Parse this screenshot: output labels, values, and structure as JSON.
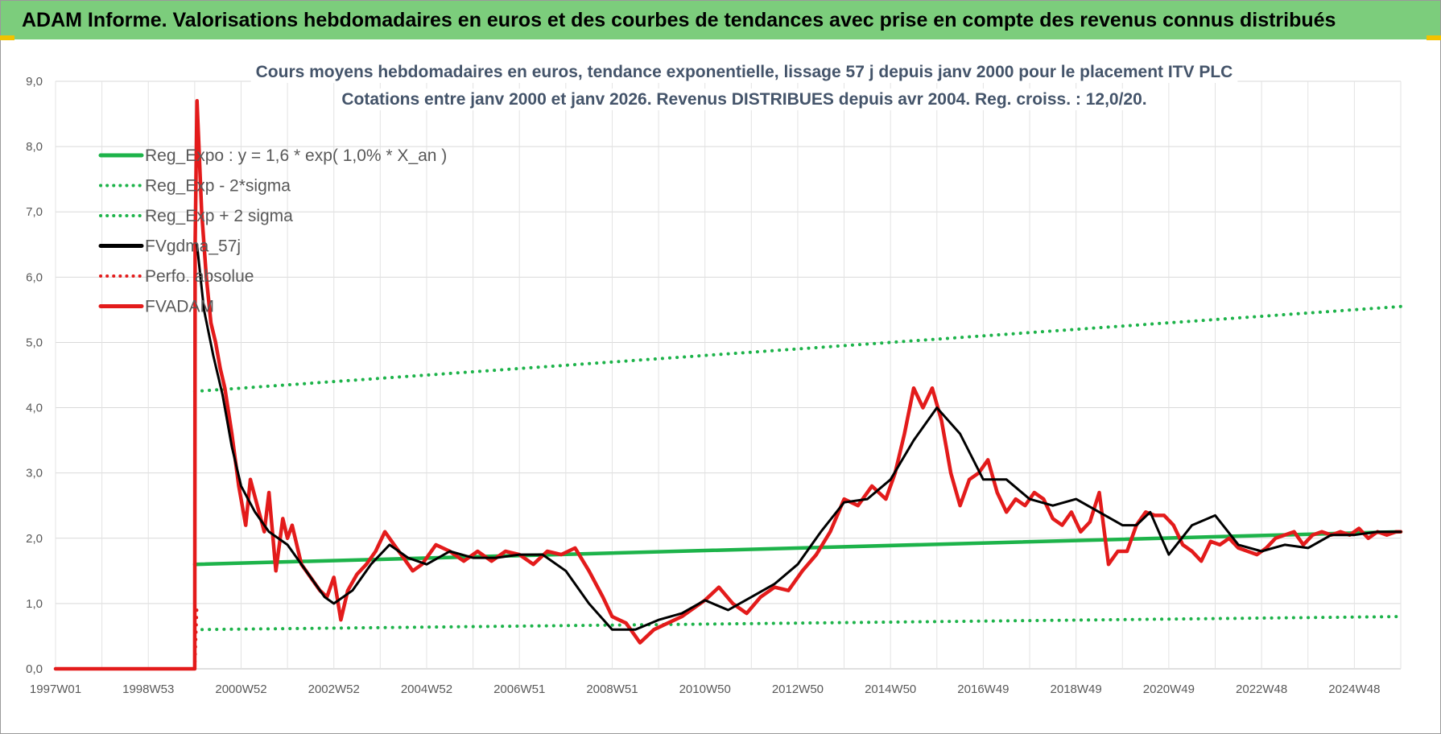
{
  "banner": {
    "title": "ADAM Informe. Valorisations hebdomadaires en euros et des courbes de tendances avec prise en compte des revenus connus distribués"
  },
  "colors": {
    "banner_bg": "#7ccd7c",
    "regression": "#1db34a",
    "sigma": "#1db34a",
    "smoothed": "#000000",
    "price": "#e31b1b",
    "perf": "#e31b1b"
  },
  "chart_data": {
    "type": "line",
    "title": [
      "Cours moyens hebdomadaires en euros, tendance exponentielle, lissage 57 j depuis janv 2000 pour le placement ITV PLC",
      "Cotations entre janv 2000 et janv 2026. Revenus DISTRIBUES depuis avr 2004. Reg. croiss. : 12,0/20."
    ],
    "xlabel": "",
    "ylabel": "",
    "ylim": [
      0,
      9
    ],
    "xlim": [
      1997.0,
      2026.0
    ],
    "grid": true,
    "legend_position": "top-left",
    "y_ticks": [
      "0,0",
      "1,0",
      "2,0",
      "3,0",
      "4,0",
      "5,0",
      "6,0",
      "7,0",
      "8,0",
      "9,0"
    ],
    "x_ticks": [
      {
        "label": "1997W01",
        "x": 1997.0
      },
      {
        "label": "1998W53",
        "x": 1999.0
      },
      {
        "label": "2000W52",
        "x": 2001.0
      },
      {
        "label": "2002W52",
        "x": 2003.0
      },
      {
        "label": "2004W52",
        "x": 2005.0
      },
      {
        "label": "2006W51",
        "x": 2007.0
      },
      {
        "label": "2008W51",
        "x": 2009.0
      },
      {
        "label": "2010W50",
        "x": 2011.0
      },
      {
        "label": "2012W50",
        "x": 2013.0
      },
      {
        "label": "2014W50",
        "x": 2015.0
      },
      {
        "label": "2016W49",
        "x": 2017.0
      },
      {
        "label": "2018W49",
        "x": 2019.0
      },
      {
        "label": "2020W49",
        "x": 2021.0
      },
      {
        "label": "2022W48",
        "x": 2023.0
      },
      {
        "label": "2024W48",
        "x": 2025.0
      }
    ],
    "series": [
      {
        "name": "Reg_Expo : y = 1,6 * exp( 1,0% *  X_an )",
        "style": "solid",
        "color": "#1db34a",
        "x": [
          2000.0,
          2026.0
        ],
        "y": [
          1.6,
          2.1
        ]
      },
      {
        "name": "Reg_Exp - 2*sigma",
        "style": "dotted",
        "color": "#1db34a",
        "x": [
          2000.0,
          2026.0
        ],
        "y": [
          0.6,
          0.8
        ]
      },
      {
        "name": "Reg_Exp + 2 sigma",
        "style": "dotted",
        "color": "#1db34a",
        "x": [
          2000.0,
          2026.0
        ],
        "y": [
          4.25,
          5.55
        ]
      },
      {
        "name": "FVgdma_57j",
        "style": "solid",
        "color": "#000000",
        "x": [
          2000.05,
          2000.2,
          2000.4,
          2000.6,
          2000.8,
          2001.0,
          2001.3,
          2001.6,
          2002.0,
          2002.4,
          2002.8,
          2003.0,
          2003.4,
          2003.8,
          2004.2,
          2004.6,
          2005.0,
          2005.5,
          2006.0,
          2006.5,
          2007.0,
          2007.5,
          2008.0,
          2008.5,
          2009.0,
          2009.5,
          2010.0,
          2010.5,
          2011.0,
          2011.5,
          2012.0,
          2012.5,
          2013.0,
          2013.5,
          2014.0,
          2014.5,
          2015.0,
          2015.5,
          2016.0,
          2016.5,
          2017.0,
          2017.5,
          2018.0,
          2018.5,
          2019.0,
          2019.5,
          2020.0,
          2020.3,
          2020.6,
          2021.0,
          2021.5,
          2022.0,
          2022.5,
          2023.0,
          2023.5,
          2024.0,
          2024.5,
          2025.0,
          2025.5,
          2026.0
        ],
        "y": [
          6.5,
          5.5,
          4.8,
          4.2,
          3.4,
          2.8,
          2.4,
          2.1,
          1.9,
          1.5,
          1.1,
          1.0,
          1.2,
          1.6,
          1.9,
          1.7,
          1.6,
          1.8,
          1.7,
          1.7,
          1.75,
          1.75,
          1.5,
          1.0,
          0.6,
          0.6,
          0.75,
          0.85,
          1.05,
          0.9,
          1.1,
          1.3,
          1.6,
          2.1,
          2.55,
          2.6,
          2.9,
          3.5,
          4.0,
          3.6,
          2.9,
          2.9,
          2.6,
          2.5,
          2.6,
          2.4,
          2.2,
          2.2,
          2.4,
          1.75,
          2.2,
          2.35,
          1.9,
          1.8,
          1.9,
          1.85,
          2.05,
          2.05,
          2.1,
          2.1
        ]
      },
      {
        "name": "Perfo. absolue",
        "style": "dotted",
        "color": "#e31b1b",
        "x": [
          2000.0,
          2000.05
        ],
        "y": [
          0.0,
          1.0
        ]
      },
      {
        "name": "FVADAM",
        "style": "solid",
        "color": "#e31b1b",
        "x": [
          1997.0,
          2000.0,
          2000.01,
          2000.05,
          2000.15,
          2000.25,
          2000.35,
          2000.45,
          2000.55,
          2000.65,
          2000.8,
          2000.95,
          2001.1,
          2001.2,
          2001.35,
          2001.5,
          2001.6,
          2001.75,
          2001.9,
          2002.0,
          2002.1,
          2002.3,
          2002.5,
          2002.7,
          2002.85,
          2003.0,
          2003.15,
          2003.3,
          2003.5,
          2003.7,
          2003.9,
          2004.1,
          2004.3,
          2004.5,
          2004.7,
          2004.9,
          2005.2,
          2005.5,
          2005.8,
          2006.1,
          2006.4,
          2006.7,
          2007.0,
          2007.3,
          2007.6,
          2007.9,
          2008.2,
          2008.5,
          2008.8,
          2009.0,
          2009.3,
          2009.6,
          2009.9,
          2010.2,
          2010.5,
          2010.8,
          2011.0,
          2011.3,
          2011.6,
          2011.9,
          2012.2,
          2012.5,
          2012.8,
          2013.1,
          2013.4,
          2013.7,
          2014.0,
          2014.3,
          2014.6,
          2014.9,
          2015.1,
          2015.3,
          2015.5,
          2015.7,
          2015.9,
          2016.1,
          2016.3,
          2016.5,
          2016.7,
          2016.9,
          2017.1,
          2017.3,
          2017.5,
          2017.7,
          2017.9,
          2018.1,
          2018.3,
          2018.5,
          2018.7,
          2018.9,
          2019.1,
          2019.3,
          2019.5,
          2019.7,
          2019.9,
          2020.1,
          2020.3,
          2020.5,
          2020.7,
          2020.9,
          2021.1,
          2021.3,
          2021.5,
          2021.7,
          2021.9,
          2022.1,
          2022.3,
          2022.5,
          2022.7,
          2022.9,
          2023.1,
          2023.3,
          2023.5,
          2023.7,
          2023.9,
          2024.1,
          2024.3,
          2024.5,
          2024.7,
          2024.9,
          2025.1,
          2025.3,
          2025.5,
          2025.7,
          2025.9,
          2026.0
        ],
        "y": [
          0.0,
          0.0,
          6.5,
          8.7,
          7.0,
          6.0,
          5.3,
          5.0,
          4.6,
          4.3,
          3.6,
          2.8,
          2.2,
          2.9,
          2.5,
          2.1,
          2.7,
          1.5,
          2.3,
          2.0,
          2.2,
          1.6,
          1.4,
          1.2,
          1.1,
          1.4,
          0.75,
          1.2,
          1.45,
          1.6,
          1.8,
          2.1,
          1.9,
          1.7,
          1.5,
          1.6,
          1.9,
          1.8,
          1.65,
          1.8,
          1.65,
          1.8,
          1.75,
          1.6,
          1.8,
          1.75,
          1.85,
          1.5,
          1.1,
          0.8,
          0.7,
          0.4,
          0.6,
          0.7,
          0.8,
          0.95,
          1.05,
          1.25,
          1.0,
          0.85,
          1.1,
          1.25,
          1.2,
          1.5,
          1.75,
          2.1,
          2.6,
          2.5,
          2.8,
          2.6,
          3.0,
          3.6,
          4.3,
          4.0,
          4.3,
          3.8,
          3.0,
          2.5,
          2.9,
          3.0,
          3.2,
          2.7,
          2.4,
          2.6,
          2.5,
          2.7,
          2.6,
          2.3,
          2.2,
          2.4,
          2.1,
          2.25,
          2.7,
          1.6,
          1.8,
          1.8,
          2.2,
          2.4,
          2.35,
          2.35,
          2.2,
          1.9,
          1.8,
          1.65,
          1.95,
          1.9,
          2.0,
          1.85,
          1.8,
          1.75,
          1.85,
          2.0,
          2.05,
          2.1,
          1.9,
          2.05,
          2.1,
          2.05,
          2.1,
          2.05,
          2.15,
          2.0,
          2.1,
          2.05,
          2.1,
          2.1
        ]
      }
    ]
  }
}
